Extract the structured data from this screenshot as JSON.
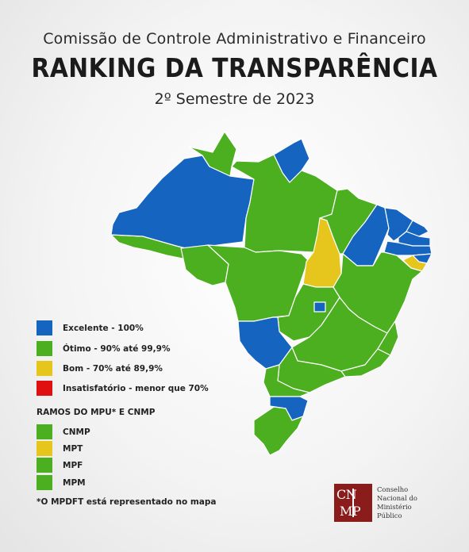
{
  "header": {
    "line1": "Comissão de Controle Administrativo e Financeiro",
    "line2": "RANKING  DA TRANSPARÊNCIA",
    "line3": "2º Semestre de 2023"
  },
  "colors": {
    "excelente": "#1565c0",
    "otimo": "#4caf1f",
    "bom": "#e6c61c",
    "insatisfatorio": "#e01010",
    "border": "#ffffff"
  },
  "legend": [
    {
      "label": "Excelente - 100%",
      "color": "#1565c0"
    },
    {
      "label": "Ótimo - 90% até 99,9%",
      "color": "#4caf1f"
    },
    {
      "label": "Bom - 70% até 89,9%",
      "color": "#e6c61c"
    },
    {
      "label": "Insatisfatório - menor que 70%",
      "color": "#e01010"
    }
  ],
  "branches": {
    "title": "RAMOS DO MPU* E CNMP",
    "items": [
      {
        "label": "CNMP",
        "color": "#4caf1f"
      },
      {
        "label": "MPT",
        "color": "#e6c61c"
      },
      {
        "label": "MPF",
        "color": "#4caf1f"
      },
      {
        "label": "MPM",
        "color": "#4caf1f"
      }
    ]
  },
  "note": "*O MPDFT está representado no mapa",
  "logo": {
    "mark_top": "CN",
    "mark_bottom": "MP",
    "line1": "Conselho",
    "line2": "Nacional do",
    "line3": "Ministério Público"
  },
  "states": [
    {
      "id": "AC",
      "rating": "otimo"
    },
    {
      "id": "AM",
      "rating": "excelente"
    },
    {
      "id": "RR",
      "rating": "otimo"
    },
    {
      "id": "AP",
      "rating": "excelente"
    },
    {
      "id": "PA",
      "rating": "otimo"
    },
    {
      "id": "RO",
      "rating": "otimo"
    },
    {
      "id": "MT",
      "rating": "otimo"
    },
    {
      "id": "TO",
      "rating": "bom"
    },
    {
      "id": "MA",
      "rating": "otimo"
    },
    {
      "id": "PI",
      "rating": "excelente"
    },
    {
      "id": "CE",
      "rating": "excelente"
    },
    {
      "id": "RN",
      "rating": "excelente"
    },
    {
      "id": "PB",
      "rating": "excelente"
    },
    {
      "id": "PE",
      "rating": "excelente"
    },
    {
      "id": "AL",
      "rating": "excelente"
    },
    {
      "id": "SE",
      "rating": "bom"
    },
    {
      "id": "BA",
      "rating": "otimo"
    },
    {
      "id": "GO",
      "rating": "otimo"
    },
    {
      "id": "DF",
      "rating": "excelente"
    },
    {
      "id": "MS",
      "rating": "excelente"
    },
    {
      "id": "MG",
      "rating": "otimo"
    },
    {
      "id": "ES",
      "rating": "otimo"
    },
    {
      "id": "RJ",
      "rating": "otimo"
    },
    {
      "id": "SP",
      "rating": "otimo"
    },
    {
      "id": "PR",
      "rating": "otimo"
    },
    {
      "id": "SC",
      "rating": "excelente"
    },
    {
      "id": "RS",
      "rating": "otimo"
    }
  ]
}
